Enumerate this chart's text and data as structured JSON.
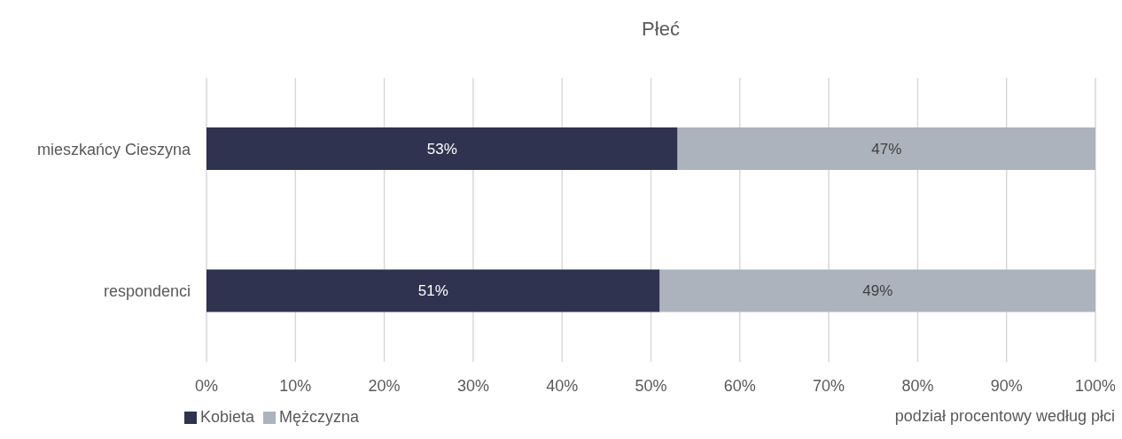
{
  "chart_data": {
    "type": "bar",
    "orientation": "horizontal",
    "stacked": true,
    "title": "Płeć",
    "categories": [
      "mieszkańcy Cieszyna",
      "respondenci"
    ],
    "series": [
      {
        "name": "Kobieta",
        "color": "#2f3350",
        "values": [
          53,
          51
        ],
        "value_labels": [
          "53%",
          "51%"
        ]
      },
      {
        "name": "Mężczyzna",
        "color": "#adb3bd",
        "values": [
          47,
          49
        ],
        "value_labels": [
          "47%",
          "49%"
        ]
      }
    ],
    "xlim": [
      0,
      100
    ],
    "xticks": [
      {
        "value": 0,
        "label": "0%"
      },
      {
        "value": 10,
        "label": "10%"
      },
      {
        "value": 20,
        "label": "20%"
      },
      {
        "value": 30,
        "label": "30%"
      },
      {
        "value": 40,
        "label": "40%"
      },
      {
        "value": 50,
        "label": "50%"
      },
      {
        "value": 60,
        "label": "60%"
      },
      {
        "value": 70,
        "label": "70%"
      },
      {
        "value": 80,
        "label": "80%"
      },
      {
        "value": 90,
        "label": "90%"
      },
      {
        "value": 100,
        "label": "100%"
      }
    ],
    "grid": "x",
    "legend": "bottom left",
    "annotations": [
      "podział procentowy według płci"
    ]
  }
}
